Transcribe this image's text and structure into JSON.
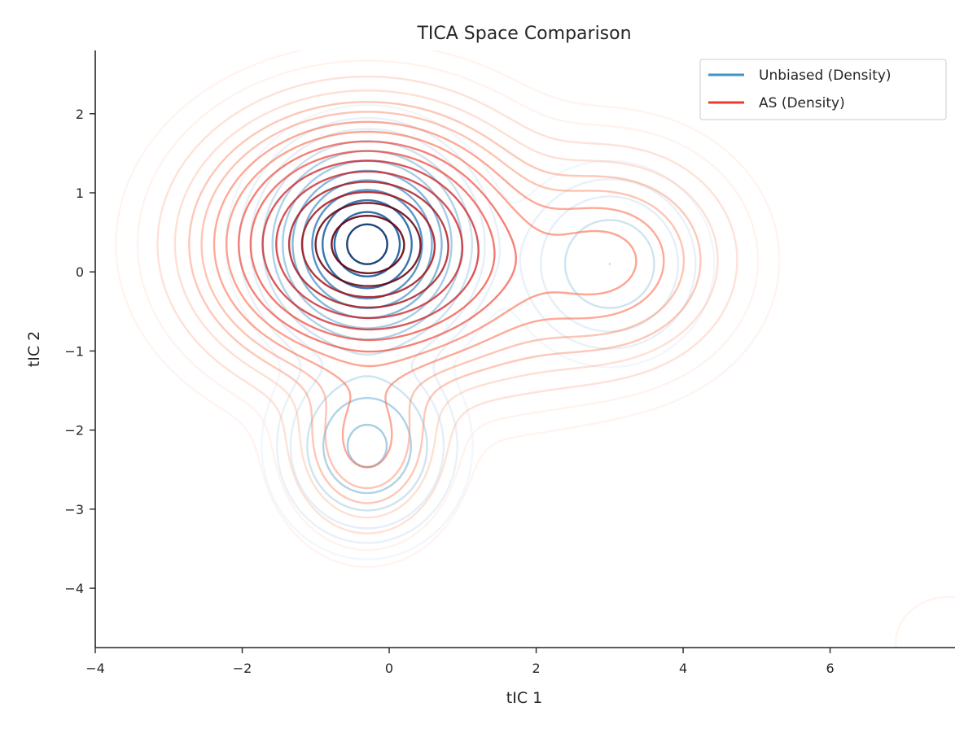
{
  "chart_data": {
    "type": "contour",
    "title": "TICA Space Comparison",
    "xlabel": "tIC 1",
    "ylabel": "tIC 2",
    "xlim": [
      -4,
      7.7
    ],
    "ylim": [
      -4.75,
      2.8
    ],
    "xticks": [
      -4,
      -2,
      0,
      2,
      4,
      6
    ],
    "yticks": [
      -4,
      -3,
      -2,
      -1,
      0,
      1,
      2
    ],
    "xtick_labels": [
      "−4",
      "−2",
      "0",
      "2",
      "4",
      "6"
    ],
    "ytick_labels": [
      "−4",
      "−3",
      "−2",
      "−1",
      "0",
      "1",
      "2"
    ],
    "grid": false,
    "legend_position": "top-right",
    "series": [
      {
        "name": "Unbiased (Density)",
        "color": "#4292c6",
        "colormap": [
          "#dbe9f6",
          "#c6dbef",
          "#9ecae1",
          "#6baed6",
          "#4292c6",
          "#2171b5",
          "#08519c",
          "#08306b"
        ],
        "peaks": [
          {
            "x": -0.3,
            "y": 0.35,
            "sx": 0.6,
            "sy": 0.55,
            "w": 1.0
          },
          {
            "x": -0.3,
            "y": -2.2,
            "sx": 0.55,
            "sy": 0.55,
            "w": 0.18
          },
          {
            "x": 3.0,
            "y": 0.1,
            "sx": 0.6,
            "sy": 0.55,
            "w": 0.1
          }
        ],
        "levels": [
          0.006,
          0.015,
          0.03,
          0.06,
          0.1,
          0.16,
          0.24,
          0.34,
          0.46,
          0.6,
          0.76,
          0.9
        ]
      },
      {
        "name": "AS (Density)",
        "color": "#ef3b2c",
        "colormap": [
          "#fee0d2",
          "#fcbba1",
          "#fc9272",
          "#fb6a4a",
          "#ef3b2c",
          "#cb181d",
          "#a50f15",
          "#67000d"
        ],
        "peaks": [
          {
            "x": -0.3,
            "y": 0.35,
            "sx": 1.05,
            "sy": 0.78,
            "w": 1.0
          },
          {
            "x": -0.3,
            "y": -2.15,
            "sx": 0.55,
            "sy": 0.6,
            "w": 0.16
          },
          {
            "x": 3.0,
            "y": 0.15,
            "sx": 0.85,
            "sy": 0.7,
            "w": 0.2
          },
          {
            "x": 1.6,
            "y": -0.45,
            "sx": 0.9,
            "sy": 0.7,
            "w": 0.05
          },
          {
            "x": 7.6,
            "y": -4.7,
            "sx": 0.6,
            "sy": 0.5,
            "w": 0.01
          }
        ],
        "levels": [
          0.005,
          0.012,
          0.025,
          0.045,
          0.07,
          0.1,
          0.14,
          0.19,
          0.25,
          0.32,
          0.4,
          0.5,
          0.6,
          0.7,
          0.8,
          0.9
        ]
      }
    ]
  }
}
